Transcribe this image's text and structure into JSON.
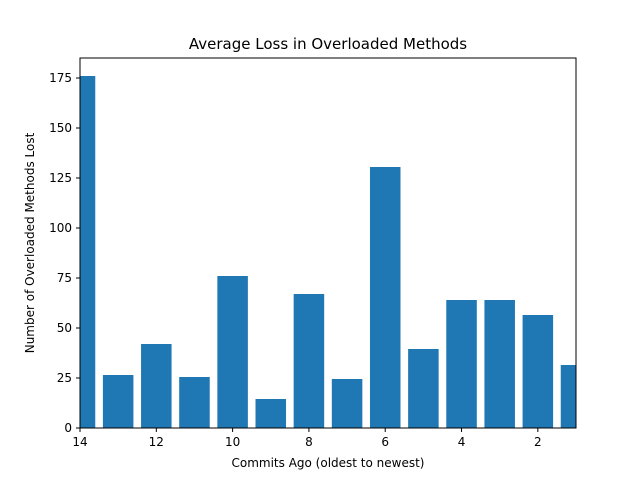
{
  "chart_data": {
    "type": "bar",
    "title": "Average Loss in Overloaded Methods",
    "xlabel": "Commits Ago (oldest to newest)",
    "ylabel": "Number of Overloaded Methods Lost",
    "x": [
      14,
      13,
      12,
      11,
      10,
      9,
      8,
      7,
      6,
      5,
      4,
      3,
      2,
      1
    ],
    "values": [
      176,
      26.5,
      42,
      25.5,
      76,
      14.5,
      67,
      24.5,
      130.5,
      39.5,
      64,
      64,
      56.5,
      31.5
    ],
    "xlim": [
      14,
      1
    ],
    "ylim": [
      0,
      185
    ],
    "xticks": [
      14,
      12,
      10,
      8,
      6,
      4,
      2
    ],
    "yticks": [
      0,
      25,
      50,
      75,
      100,
      125,
      150,
      175
    ],
    "bar_color": "#1f77b4",
    "grid": false,
    "legend": "none"
  }
}
